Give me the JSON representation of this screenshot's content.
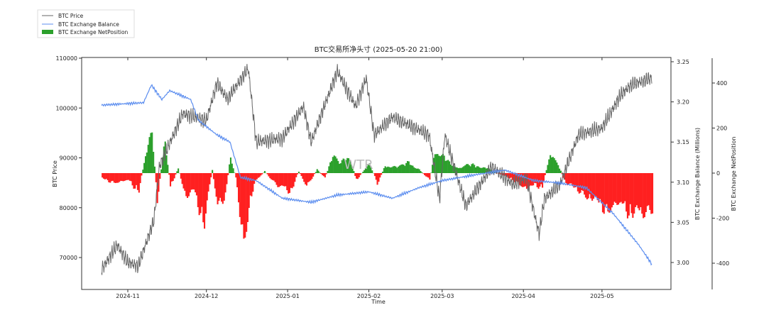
{
  "chart_data": {
    "type": "line",
    "title": "BTC交易所净头寸 (2025-05-20 21:00)",
    "xlabel": "Time",
    "ylabel_left": "BTC Price",
    "ylabel_right": "BTC Exchange Balance (Millions)",
    "ylabel_right2": "BTC Exchange NetPosition",
    "watermark": "WTR",
    "legend": [
      "BTC Price",
      "BTC Exchange Balance",
      "BTC Exchange NetPosition"
    ],
    "legend_position": "top-left",
    "x_ticks": [
      "2024-11",
      "2024-12",
      "2025-01",
      "2025-02",
      "2025-03",
      "2025-04",
      "2025-05"
    ],
    "x_tick_dates": [
      "2024-11-01",
      "2024-12-01",
      "2025-01-01",
      "2025-02-01",
      "2025-03-01",
      "2025-04-01",
      "2025-05-01"
    ],
    "y_left_ticks": [
      "70000",
      "80000",
      "90000",
      "100000",
      "110000"
    ],
    "y_left_tick_values": [
      70000,
      80000,
      90000,
      100000,
      110000
    ],
    "y_right_ticks": [
      "3.00",
      "3.05",
      "3.10",
      "3.15",
      "3.20",
      "3.25"
    ],
    "y_right_tick_values": [
      3.0,
      3.05,
      3.1,
      3.15,
      3.2,
      3.25
    ],
    "y_right2_ticks": [
      "-400",
      "-200",
      "0",
      "200",
      "400"
    ],
    "y_right2_tick_values": [
      -400,
      -200,
      0,
      200,
      400
    ],
    "colors": {
      "price": "#666666",
      "balance": "#5b8def",
      "net_pos": "#2ca02c",
      "net_neg": "#ff2020"
    },
    "series": [
      {
        "name": "BTC Price",
        "points": [
          [
            "2024-10-22",
            67600
          ],
          [
            "2024-10-28",
            72500
          ],
          [
            "2024-11-01",
            69000
          ],
          [
            "2024-11-05",
            68300
          ],
          [
            "2024-11-11",
            77500
          ],
          [
            "2024-11-13",
            88200
          ],
          [
            "2024-11-22",
            98900
          ],
          [
            "2024-12-01",
            97500
          ],
          [
            "2024-12-05",
            105000
          ],
          [
            "2024-12-09",
            101800
          ],
          [
            "2024-12-17",
            107900
          ],
          [
            "2024-12-20",
            93200
          ],
          [
            "2024-12-30",
            93900
          ],
          [
            "2025-01-07",
            100300
          ],
          [
            "2025-01-10",
            93200
          ],
          [
            "2025-01-13",
            97500
          ],
          [
            "2025-01-20",
            107400
          ],
          [
            "2025-01-27",
            100300
          ],
          [
            "2025-01-31",
            106000
          ],
          [
            "2025-02-03",
            94600
          ],
          [
            "2025-02-10",
            98200
          ],
          [
            "2025-02-24",
            94600
          ],
          [
            "2025-02-28",
            81800
          ],
          [
            "2025-03-02",
            94600
          ],
          [
            "2025-03-10",
            80400
          ],
          [
            "2025-03-20",
            88200
          ],
          [
            "2025-03-28",
            84700
          ],
          [
            "2025-04-02",
            86100
          ],
          [
            "2025-04-07",
            74700
          ],
          [
            "2025-04-09",
            81800
          ],
          [
            "2025-04-15",
            84700
          ],
          [
            "2025-04-22",
            94600
          ],
          [
            "2025-05-01",
            96000
          ],
          [
            "2025-05-08",
            102500
          ],
          [
            "2025-05-12",
            104600
          ],
          [
            "2025-05-20",
            106000
          ]
        ]
      },
      {
        "name": "BTC Exchange Balance",
        "points": [
          [
            "2024-10-22",
            3.196
          ],
          [
            "2024-11-07",
            3.199
          ],
          [
            "2024-11-10",
            3.221
          ],
          [
            "2024-11-14",
            3.203
          ],
          [
            "2024-11-17",
            3.214
          ],
          [
            "2024-11-25",
            3.203
          ],
          [
            "2024-11-28",
            3.177
          ],
          [
            "2024-12-05",
            3.159
          ],
          [
            "2024-12-10",
            3.15
          ],
          [
            "2024-12-14",
            3.106
          ],
          [
            "2024-12-20",
            3.102
          ],
          [
            "2024-12-30",
            3.08
          ],
          [
            "2025-01-10",
            3.075
          ],
          [
            "2025-01-20",
            3.084
          ],
          [
            "2025-02-01",
            3.088
          ],
          [
            "2025-02-10",
            3.08
          ],
          [
            "2025-02-20",
            3.093
          ],
          [
            "2025-03-01",
            3.102
          ],
          [
            "2025-03-15",
            3.11
          ],
          [
            "2025-03-25",
            3.115
          ],
          [
            "2025-04-05",
            3.102
          ],
          [
            "2025-04-15",
            3.099
          ],
          [
            "2025-04-25",
            3.093
          ],
          [
            "2025-05-05",
            3.062
          ],
          [
            "2025-05-15",
            3.022
          ],
          [
            "2025-05-20",
            2.998
          ]
        ]
      },
      {
        "name": "BTC Exchange NetPosition",
        "points": [
          [
            "2024-10-22",
            -30
          ],
          [
            "2024-10-28",
            -60
          ],
          [
            "2024-11-01",
            -40
          ],
          [
            "2024-11-05",
            -100
          ],
          [
            "2024-11-08",
            150
          ],
          [
            "2024-11-10",
            240
          ],
          [
            "2024-11-12",
            -150
          ],
          [
            "2024-11-15",
            200
          ],
          [
            "2024-11-17",
            -80
          ],
          [
            "2024-11-20",
            30
          ],
          [
            "2024-11-23",
            -150
          ],
          [
            "2024-11-26",
            -100
          ],
          [
            "2024-11-30",
            -280
          ],
          [
            "2024-12-03",
            20
          ],
          [
            "2024-12-05",
            -200
          ],
          [
            "2024-12-08",
            -120
          ],
          [
            "2024-12-10",
            100
          ],
          [
            "2024-12-12",
            -30
          ],
          [
            "2024-12-15",
            -420
          ],
          [
            "2024-12-17",
            -200
          ],
          [
            "2024-12-19",
            -60
          ],
          [
            "2024-12-23",
            10
          ],
          [
            "2024-12-28",
            -80
          ],
          [
            "2025-01-02",
            -100
          ],
          [
            "2025-01-05",
            10
          ],
          [
            "2025-01-08",
            -80
          ],
          [
            "2025-01-12",
            20
          ],
          [
            "2025-01-15",
            -30
          ],
          [
            "2025-01-18",
            100
          ],
          [
            "2025-01-21",
            60
          ],
          [
            "2025-01-24",
            110
          ],
          [
            "2025-01-27",
            -40
          ],
          [
            "2025-02-01",
            60
          ],
          [
            "2025-02-04",
            -60
          ],
          [
            "2025-02-07",
            40
          ],
          [
            "2025-02-12",
            40
          ],
          [
            "2025-02-16",
            60
          ],
          [
            "2025-02-20",
            20
          ],
          [
            "2025-02-24",
            -40
          ],
          [
            "2025-02-26",
            130
          ],
          [
            "2025-02-28",
            120
          ],
          [
            "2025-03-03",
            60
          ],
          [
            "2025-03-07",
            30
          ],
          [
            "2025-03-10",
            50
          ],
          [
            "2025-03-14",
            40
          ],
          [
            "2025-03-18",
            30
          ],
          [
            "2025-03-20",
            10
          ],
          [
            "2025-03-25",
            -20
          ],
          [
            "2025-03-28",
            -40
          ],
          [
            "2025-04-02",
            -100
          ],
          [
            "2025-04-05",
            -60
          ],
          [
            "2025-04-08",
            -80
          ],
          [
            "2025-04-11",
            120
          ],
          [
            "2025-04-14",
            50
          ],
          [
            "2025-04-17",
            -60
          ],
          [
            "2025-04-22",
            -100
          ],
          [
            "2025-04-26",
            -150
          ],
          [
            "2025-04-30",
            -170
          ],
          [
            "2025-05-04",
            -220
          ],
          [
            "2025-05-08",
            -180
          ],
          [
            "2025-05-12",
            -220
          ],
          [
            "2025-05-16",
            -250
          ],
          [
            "2025-05-20",
            -200
          ]
        ]
      }
    ]
  }
}
